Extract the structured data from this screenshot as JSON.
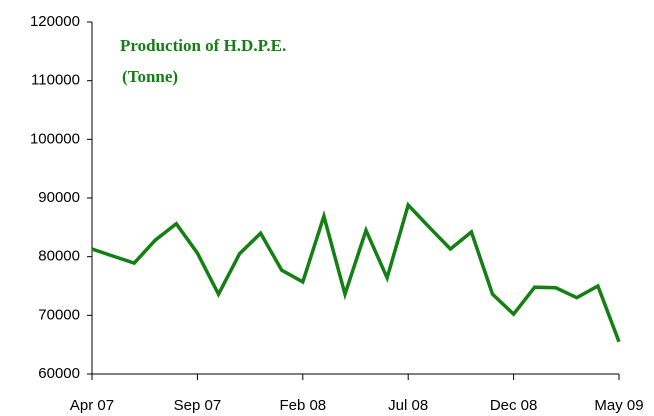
{
  "chart_data": {
    "type": "line",
    "title": "Production of H.D.P.E.",
    "subtitle": "(Tonne)",
    "categories": [
      "Apr 07",
      null,
      null,
      null,
      null,
      "Sep 07",
      null,
      null,
      null,
      null,
      "Feb 08",
      null,
      null,
      null,
      null,
      "Jul 08",
      null,
      null,
      null,
      null,
      "Dec 08",
      null,
      null,
      null,
      null,
      "May 09"
    ],
    "values": [
      81300,
      80100,
      78900,
      82800,
      85600,
      80600,
      73600,
      80500,
      84000,
      77700,
      75700,
      86900,
      73600,
      84500,
      76400,
      88800,
      85000,
      81300,
      84200,
      73600,
      70200,
      74800,
      74700,
      73000,
      75000,
      65500
    ],
    "color": "#138013",
    "ylim": [
      60000,
      120000
    ],
    "yticks": [
      60000,
      70000,
      80000,
      90000,
      100000,
      110000,
      120000
    ],
    "grid": false
  }
}
